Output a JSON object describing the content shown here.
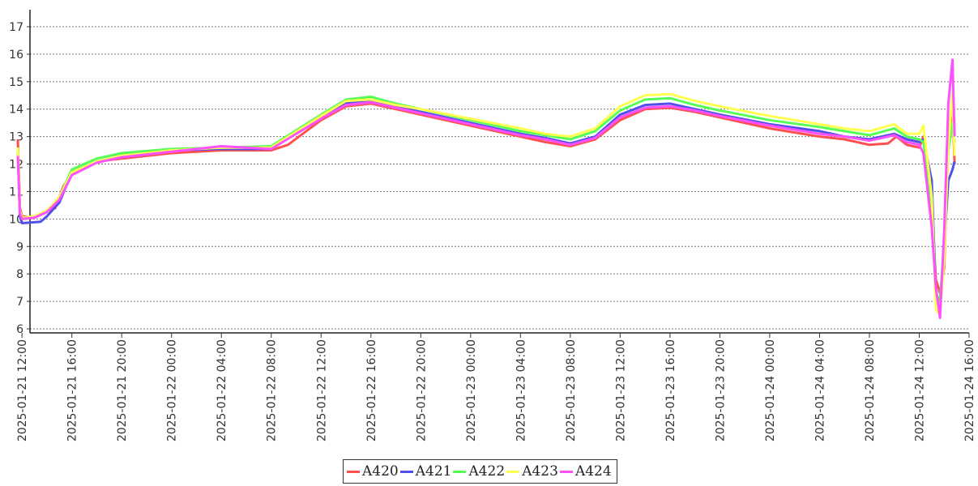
{
  "chart_data": {
    "type": "line",
    "title": "",
    "xlabel": "",
    "ylabel": "",
    "ylim": [
      6,
      17
    ],
    "yticks": [
      6,
      7,
      8,
      9,
      10,
      11,
      12,
      13,
      14,
      15,
      16,
      17
    ],
    "xlim": [
      "2025-01-21 10:00",
      "2025-01-24 16:00"
    ],
    "xticks": [
      "2025-01-21 12:00",
      "2025-01-21 16:00",
      "2025-01-21 20:00",
      "2025-01-22 00:00",
      "2025-01-22 04:00",
      "2025-01-22 08:00",
      "2025-01-22 12:00",
      "2025-01-22 16:00",
      "2025-01-22 20:00",
      "2025-01-23 00:00",
      "2025-01-23 04:00",
      "2025-01-23 08:00",
      "2025-01-23 12:00",
      "2025-01-23 16:00",
      "2025-01-23 20:00",
      "2025-01-24 00:00",
      "2025-01-24 04:00",
      "2025-01-24 08:00",
      "2025-01-24 12:00",
      "2025-01-24 16:00"
    ],
    "grid": "horizontal-dotted",
    "legend_position": "bottom-center",
    "series": [
      {
        "name": "A420",
        "color": "#ff5050",
        "points": [
          [
            "2025-01-21 11:40",
            12.9
          ],
          [
            "2025-01-21 11:50",
            10.4
          ],
          [
            "2025-01-21 12:00",
            10.1
          ],
          [
            "2025-01-21 13:00",
            10.05
          ],
          [
            "2025-01-21 14:00",
            10.3
          ],
          [
            "2025-01-21 14:40",
            10.4
          ],
          [
            "2025-01-21 15:20",
            11.2
          ],
          [
            "2025-01-21 16:00",
            11.6
          ],
          [
            "2025-01-21 18:00",
            12.1
          ],
          [
            "2025-01-21 20:00",
            12.2
          ],
          [
            "2025-01-22 00:00",
            12.4
          ],
          [
            "2025-01-22 04:00",
            12.5
          ],
          [
            "2025-01-22 08:00",
            12.5
          ],
          [
            "2025-01-22 09:20",
            12.7
          ],
          [
            "2025-01-22 12:00",
            13.6
          ],
          [
            "2025-01-22 14:00",
            14.1
          ],
          [
            "2025-01-22 16:00",
            14.2
          ],
          [
            "2025-01-22 18:00",
            14.0
          ],
          [
            "2025-01-22 20:00",
            13.8
          ],
          [
            "2025-01-23 00:00",
            13.4
          ],
          [
            "2025-01-23 04:00",
            13.0
          ],
          [
            "2025-01-23 06:00",
            12.8
          ],
          [
            "2025-01-23 08:00",
            12.65
          ],
          [
            "2025-01-23 10:00",
            12.9
          ],
          [
            "2025-01-23 12:00",
            13.6
          ],
          [
            "2025-01-23 14:00",
            14.0
          ],
          [
            "2025-01-23 16:00",
            14.05
          ],
          [
            "2025-01-23 18:00",
            13.9
          ],
          [
            "2025-01-23 20:00",
            13.7
          ],
          [
            "2025-01-24 00:00",
            13.3
          ],
          [
            "2025-01-24 04:00",
            13.0
          ],
          [
            "2025-01-24 06:00",
            12.9
          ],
          [
            "2025-01-24 08:00",
            12.7
          ],
          [
            "2025-01-24 09:30",
            12.75
          ],
          [
            "2025-01-24 10:10",
            13.0
          ],
          [
            "2025-01-24 11:00",
            12.7
          ],
          [
            "2025-01-24 12:00",
            12.6
          ],
          [
            "2025-01-24 12:20",
            13.0
          ],
          [
            "2025-01-24 13:00",
            10.5
          ],
          [
            "2025-01-24 13:20",
            7.8
          ],
          [
            "2025-01-24 13:40",
            7.3
          ],
          [
            "2025-01-24 14:00",
            8.2
          ],
          [
            "2025-01-24 14:20",
            12.8
          ],
          [
            "2025-01-24 14:40",
            14.2
          ],
          [
            "2025-01-24 14:50",
            12.0
          ]
        ]
      },
      {
        "name": "A421",
        "color": "#5050e8",
        "points": [
          [
            "2025-01-21 11:40",
            12.5
          ],
          [
            "2025-01-21 11:50",
            10.1
          ],
          [
            "2025-01-21 12:00",
            9.85
          ],
          [
            "2025-01-21 13:30",
            9.9
          ],
          [
            "2025-01-21 14:00",
            10.1
          ],
          [
            "2025-01-21 15:00",
            10.6
          ],
          [
            "2025-01-21 16:00",
            11.7
          ],
          [
            "2025-01-21 18:00",
            12.1
          ],
          [
            "2025-01-21 20:00",
            12.3
          ],
          [
            "2025-01-22 00:00",
            12.5
          ],
          [
            "2025-01-22 04:00",
            12.55
          ],
          [
            "2025-01-22 08:00",
            12.55
          ],
          [
            "2025-01-22 12:00",
            13.7
          ],
          [
            "2025-01-22 14:00",
            14.2
          ],
          [
            "2025-01-22 16:00",
            14.3
          ],
          [
            "2025-01-22 18:00",
            14.1
          ],
          [
            "2025-01-22 20:00",
            13.9
          ],
          [
            "2025-01-23 00:00",
            13.5
          ],
          [
            "2025-01-23 04:00",
            13.1
          ],
          [
            "2025-01-23 06:00",
            12.95
          ],
          [
            "2025-01-23 08:00",
            12.75
          ],
          [
            "2025-01-23 10:00",
            13.0
          ],
          [
            "2025-01-23 12:00",
            13.8
          ],
          [
            "2025-01-23 14:00",
            14.15
          ],
          [
            "2025-01-23 16:00",
            14.2
          ],
          [
            "2025-01-23 18:00",
            14.0
          ],
          [
            "2025-01-23 20:00",
            13.8
          ],
          [
            "2025-01-24 00:00",
            13.45
          ],
          [
            "2025-01-24 04:00",
            13.2
          ],
          [
            "2025-01-24 06:00",
            13.0
          ],
          [
            "2025-01-24 08:00",
            12.9
          ],
          [
            "2025-01-24 10:00",
            13.1
          ],
          [
            "2025-01-24 11:00",
            12.9
          ],
          [
            "2025-01-24 12:00",
            12.8
          ],
          [
            "2025-01-24 12:20",
            12.9
          ],
          [
            "2025-01-24 13:00",
            11.4
          ],
          [
            "2025-01-24 13:20",
            7.2
          ],
          [
            "2025-01-24 13:40",
            7.0
          ],
          [
            "2025-01-24 14:00",
            9.0
          ],
          [
            "2025-01-24 14:20",
            11.4
          ],
          [
            "2025-01-24 14:40",
            11.8
          ],
          [
            "2025-01-24 14:50",
            12.1
          ]
        ]
      },
      {
        "name": "A422",
        "color": "#55ff55",
        "points": [
          [
            "2025-01-21 11:40",
            12.6
          ],
          [
            "2025-01-21 11:50",
            10.3
          ],
          [
            "2025-01-21 12:00",
            10.0
          ],
          [
            "2025-01-21 13:00",
            10.1
          ],
          [
            "2025-01-21 14:00",
            10.3
          ],
          [
            "2025-01-21 15:00",
            10.8
          ],
          [
            "2025-01-21 16:00",
            11.8
          ],
          [
            "2025-01-21 18:00",
            12.2
          ],
          [
            "2025-01-21 20:00",
            12.4
          ],
          [
            "2025-01-22 00:00",
            12.55
          ],
          [
            "2025-01-22 04:00",
            12.6
          ],
          [
            "2025-01-22 08:00",
            12.65
          ],
          [
            "2025-01-22 12:00",
            13.8
          ],
          [
            "2025-01-22 14:00",
            14.35
          ],
          [
            "2025-01-22 16:00",
            14.45
          ],
          [
            "2025-01-22 18:00",
            14.2
          ],
          [
            "2025-01-22 20:00",
            14.0
          ],
          [
            "2025-01-23 00:00",
            13.6
          ],
          [
            "2025-01-23 04:00",
            13.2
          ],
          [
            "2025-01-23 06:00",
            13.05
          ],
          [
            "2025-01-23 08:00",
            12.9
          ],
          [
            "2025-01-23 10:00",
            13.2
          ],
          [
            "2025-01-23 12:00",
            13.95
          ],
          [
            "2025-01-23 14:00",
            14.35
          ],
          [
            "2025-01-23 16:00",
            14.4
          ],
          [
            "2025-01-23 18:00",
            14.15
          ],
          [
            "2025-01-23 20:00",
            13.95
          ],
          [
            "2025-01-24 00:00",
            13.6
          ],
          [
            "2025-01-24 04:00",
            13.35
          ],
          [
            "2025-01-24 06:00",
            13.2
          ],
          [
            "2025-01-24 08:00",
            13.05
          ],
          [
            "2025-01-24 10:00",
            13.3
          ],
          [
            "2025-01-24 11:00",
            13.0
          ],
          [
            "2025-01-24 12:00",
            12.9
          ],
          [
            "2025-01-24 12:20",
            12.8
          ],
          [
            "2025-01-24 13:00",
            10.5
          ],
          [
            "2025-01-24 13:20",
            7.3
          ],
          [
            "2025-01-24 13:40",
            7.0
          ],
          [
            "2025-01-24 14:00",
            9.2
          ],
          [
            "2025-01-24 14:20",
            12.5
          ],
          [
            "2025-01-24 14:40",
            13.5
          ],
          [
            "2025-01-24 14:50",
            12.8
          ]
        ]
      },
      {
        "name": "A423",
        "color": "#ffff50",
        "points": [
          [
            "2025-01-21 11:40",
            12.6
          ],
          [
            "2025-01-21 11:50",
            10.3
          ],
          [
            "2025-01-21 12:00",
            10.05
          ],
          [
            "2025-01-21 13:00",
            10.1
          ],
          [
            "2025-01-21 14:00",
            10.3
          ],
          [
            "2025-01-21 15:00",
            10.8
          ],
          [
            "2025-01-21 16:00",
            11.7
          ],
          [
            "2025-01-21 18:00",
            12.1
          ],
          [
            "2025-01-21 20:00",
            12.3
          ],
          [
            "2025-01-22 00:00",
            12.5
          ],
          [
            "2025-01-22 04:00",
            12.6
          ],
          [
            "2025-01-22 08:00",
            12.6
          ],
          [
            "2025-01-22 12:00",
            13.75
          ],
          [
            "2025-01-22 14:00",
            14.3
          ],
          [
            "2025-01-22 16:00",
            14.35
          ],
          [
            "2025-01-22 18:00",
            14.15
          ],
          [
            "2025-01-22 20:00",
            14.0
          ],
          [
            "2025-01-23 00:00",
            13.65
          ],
          [
            "2025-01-23 04:00",
            13.3
          ],
          [
            "2025-01-23 06:00",
            13.1
          ],
          [
            "2025-01-23 08:00",
            13.0
          ],
          [
            "2025-01-23 10:00",
            13.3
          ],
          [
            "2025-01-23 12:00",
            14.1
          ],
          [
            "2025-01-23 14:00",
            14.5
          ],
          [
            "2025-01-23 16:00",
            14.55
          ],
          [
            "2025-01-23 18:00",
            14.3
          ],
          [
            "2025-01-23 20:00",
            14.1
          ],
          [
            "2025-01-24 00:00",
            13.75
          ],
          [
            "2025-01-24 04:00",
            13.45
          ],
          [
            "2025-01-24 06:00",
            13.3
          ],
          [
            "2025-01-24 08:00",
            13.2
          ],
          [
            "2025-01-24 10:00",
            13.45
          ],
          [
            "2025-01-24 11:00",
            13.1
          ],
          [
            "2025-01-24 12:00",
            13.1
          ],
          [
            "2025-01-24 12:20",
            13.4
          ],
          [
            "2025-01-24 13:00",
            10.8
          ],
          [
            "2025-01-24 13:20",
            6.7
          ],
          [
            "2025-01-24 13:40",
            6.5
          ],
          [
            "2025-01-24 14:00",
            8.5
          ],
          [
            "2025-01-24 14:20",
            12.7
          ],
          [
            "2025-01-24 14:40",
            14.6
          ],
          [
            "2025-01-24 14:50",
            12.3
          ]
        ]
      },
      {
        "name": "A424",
        "color": "#ff50ff",
        "points": [
          [
            "2025-01-21 11:40",
            12.3
          ],
          [
            "2025-01-21 11:50",
            10.2
          ],
          [
            "2025-01-21 12:00",
            10.0
          ],
          [
            "2025-01-21 13:00",
            10.05
          ],
          [
            "2025-01-21 14:00",
            10.25
          ],
          [
            "2025-01-21 15:00",
            10.7
          ],
          [
            "2025-01-21 16:00",
            11.6
          ],
          [
            "2025-01-21 18:00",
            12.05
          ],
          [
            "2025-01-21 20:00",
            12.25
          ],
          [
            "2025-01-22 00:00",
            12.45
          ],
          [
            "2025-01-22 04:00",
            12.65
          ],
          [
            "2025-01-22 08:00",
            12.55
          ],
          [
            "2025-01-22 12:00",
            13.65
          ],
          [
            "2025-01-22 14:00",
            14.15
          ],
          [
            "2025-01-22 16:00",
            14.25
          ],
          [
            "2025-01-22 18:00",
            14.05
          ],
          [
            "2025-01-22 20:00",
            13.85
          ],
          [
            "2025-01-23 00:00",
            13.45
          ],
          [
            "2025-01-23 04:00",
            13.05
          ],
          [
            "2025-01-23 06:00",
            12.9
          ],
          [
            "2025-01-23 08:00",
            12.7
          ],
          [
            "2025-01-23 10:00",
            12.95
          ],
          [
            "2025-01-23 12:00",
            13.7
          ],
          [
            "2025-01-23 14:00",
            14.05
          ],
          [
            "2025-01-23 16:00",
            14.1
          ],
          [
            "2025-01-23 18:00",
            13.95
          ],
          [
            "2025-01-23 20:00",
            13.75
          ],
          [
            "2025-01-24 00:00",
            13.4
          ],
          [
            "2025-01-24 04:00",
            13.1
          ],
          [
            "2025-01-24 06:00",
            13.0
          ],
          [
            "2025-01-24 08:00",
            12.85
          ],
          [
            "2025-01-24 10:00",
            13.05
          ],
          [
            "2025-01-24 11:00",
            12.8
          ],
          [
            "2025-01-24 12:00",
            12.7
          ],
          [
            "2025-01-24 12:20",
            12.4
          ],
          [
            "2025-01-24 13:00",
            9.7
          ],
          [
            "2025-01-24 13:20",
            7.5
          ],
          [
            "2025-01-24 13:40",
            6.4
          ],
          [
            "2025-01-24 14:00",
            9.5
          ],
          [
            "2025-01-24 14:20",
            14.2
          ],
          [
            "2025-01-24 14:40",
            15.8
          ],
          [
            "2025-01-24 14:50",
            13.0
          ]
        ]
      }
    ]
  }
}
